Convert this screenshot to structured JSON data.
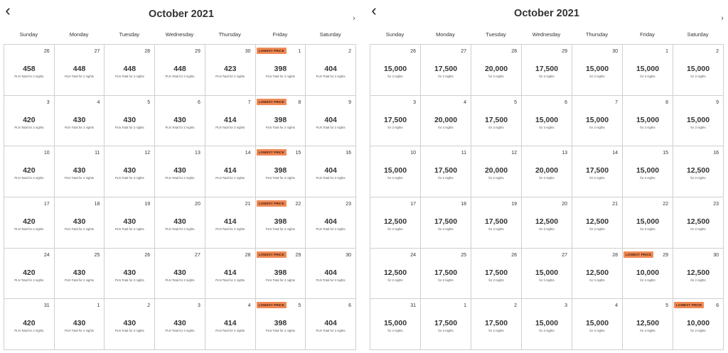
{
  "panels": [
    {
      "title": "October 2021",
      "prev_icon": "‹",
      "next_icon": "›",
      "weekdays": [
        "Sunday",
        "Monday",
        "Tuesday",
        "Wednesday",
        "Thursday",
        "Friday",
        "Saturday"
      ],
      "note_text": "PLN Total for 2 nights",
      "weeks": [
        [
          {
            "day": "26",
            "price": "458",
            "badge": ""
          },
          {
            "day": "27",
            "price": "448",
            "badge": ""
          },
          {
            "day": "28",
            "price": "448",
            "badge": ""
          },
          {
            "day": "29",
            "price": "448",
            "badge": ""
          },
          {
            "day": "30",
            "price": "423",
            "badge": ""
          },
          {
            "day": "1",
            "price": "398",
            "badge": "LOWEST PRICE"
          },
          {
            "day": "2",
            "price": "404",
            "badge": ""
          }
        ],
        [
          {
            "day": "3",
            "price": "420",
            "badge": ""
          },
          {
            "day": "4",
            "price": "430",
            "badge": ""
          },
          {
            "day": "5",
            "price": "430",
            "badge": ""
          },
          {
            "day": "6",
            "price": "430",
            "badge": ""
          },
          {
            "day": "7",
            "price": "414",
            "badge": ""
          },
          {
            "day": "8",
            "price": "398",
            "badge": "LOWEST PRICE"
          },
          {
            "day": "9",
            "price": "404",
            "badge": ""
          }
        ],
        [
          {
            "day": "10",
            "price": "420",
            "badge": ""
          },
          {
            "day": "11",
            "price": "430",
            "badge": ""
          },
          {
            "day": "12",
            "price": "430",
            "badge": ""
          },
          {
            "day": "13",
            "price": "430",
            "badge": ""
          },
          {
            "day": "14",
            "price": "414",
            "badge": ""
          },
          {
            "day": "15",
            "price": "398",
            "badge": "LOWEST PRICE"
          },
          {
            "day": "16",
            "price": "404",
            "badge": ""
          }
        ],
        [
          {
            "day": "17",
            "price": "420",
            "badge": ""
          },
          {
            "day": "18",
            "price": "430",
            "badge": ""
          },
          {
            "day": "19",
            "price": "430",
            "badge": ""
          },
          {
            "day": "20",
            "price": "430",
            "badge": ""
          },
          {
            "day": "21",
            "price": "414",
            "badge": ""
          },
          {
            "day": "22",
            "price": "398",
            "badge": "LOWEST PRICE"
          },
          {
            "day": "23",
            "price": "404",
            "badge": ""
          }
        ],
        [
          {
            "day": "24",
            "price": "420",
            "badge": ""
          },
          {
            "day": "25",
            "price": "430",
            "badge": ""
          },
          {
            "day": "26",
            "price": "430",
            "badge": ""
          },
          {
            "day": "27",
            "price": "430",
            "badge": ""
          },
          {
            "day": "28",
            "price": "414",
            "badge": ""
          },
          {
            "day": "29",
            "price": "398",
            "badge": "LOWEST PRICE"
          },
          {
            "day": "30",
            "price": "404",
            "badge": ""
          }
        ],
        [
          {
            "day": "31",
            "price": "420",
            "badge": ""
          },
          {
            "day": "1",
            "price": "430",
            "badge": ""
          },
          {
            "day": "2",
            "price": "430",
            "badge": ""
          },
          {
            "day": "3",
            "price": "430",
            "badge": ""
          },
          {
            "day": "4",
            "price": "414",
            "badge": ""
          },
          {
            "day": "5",
            "price": "398",
            "badge": "LOWEST PRICE"
          },
          {
            "day": "6",
            "price": "404",
            "badge": ""
          }
        ]
      ]
    },
    {
      "title": "October 2021",
      "prev_icon": "‹",
      "next_icon": "›",
      "weekdays": [
        "Sunday",
        "Monday",
        "Tuesday",
        "Wednesday",
        "Thursday",
        "Friday",
        "Saturday"
      ],
      "note_text": "for 2 nights",
      "weeks": [
        [
          {
            "day": "26",
            "price": "15,000",
            "badge": ""
          },
          {
            "day": "27",
            "price": "17,500",
            "badge": ""
          },
          {
            "day": "28",
            "price": "20,000",
            "badge": ""
          },
          {
            "day": "29",
            "price": "17,500",
            "badge": ""
          },
          {
            "day": "30",
            "price": "15,000",
            "badge": ""
          },
          {
            "day": "1",
            "price": "15,000",
            "badge": ""
          },
          {
            "day": "2",
            "price": "15,000",
            "badge": ""
          }
        ],
        [
          {
            "day": "3",
            "price": "17,500",
            "badge": ""
          },
          {
            "day": "4",
            "price": "20,000",
            "badge": ""
          },
          {
            "day": "5",
            "price": "17,500",
            "badge": ""
          },
          {
            "day": "6",
            "price": "15,000",
            "badge": ""
          },
          {
            "day": "7",
            "price": "15,000",
            "badge": ""
          },
          {
            "day": "8",
            "price": "15,000",
            "badge": ""
          },
          {
            "day": "9",
            "price": "15,000",
            "badge": ""
          }
        ],
        [
          {
            "day": "10",
            "price": "15,000",
            "badge": ""
          },
          {
            "day": "11",
            "price": "17,500",
            "badge": ""
          },
          {
            "day": "12",
            "price": "20,000",
            "badge": ""
          },
          {
            "day": "13",
            "price": "20,000",
            "badge": ""
          },
          {
            "day": "14",
            "price": "17,500",
            "badge": ""
          },
          {
            "day": "15",
            "price": "15,000",
            "badge": ""
          },
          {
            "day": "16",
            "price": "12,500",
            "badge": ""
          }
        ],
        [
          {
            "day": "17",
            "price": "12,500",
            "badge": ""
          },
          {
            "day": "18",
            "price": "17,500",
            "badge": ""
          },
          {
            "day": "19",
            "price": "17,500",
            "badge": ""
          },
          {
            "day": "20",
            "price": "12,500",
            "badge": ""
          },
          {
            "day": "21",
            "price": "12,500",
            "badge": ""
          },
          {
            "day": "22",
            "price": "15,000",
            "badge": ""
          },
          {
            "day": "23",
            "price": "12,500",
            "badge": ""
          }
        ],
        [
          {
            "day": "24",
            "price": "12,500",
            "badge": ""
          },
          {
            "day": "25",
            "price": "17,500",
            "badge": ""
          },
          {
            "day": "26",
            "price": "17,500",
            "badge": ""
          },
          {
            "day": "27",
            "price": "15,000",
            "badge": ""
          },
          {
            "day": "28",
            "price": "12,500",
            "badge": ""
          },
          {
            "day": "29",
            "price": "10,000",
            "badge": "LOWEST PRICE"
          },
          {
            "day": "30",
            "price": "12,500",
            "badge": ""
          }
        ],
        [
          {
            "day": "31",
            "price": "15,000",
            "badge": ""
          },
          {
            "day": "1",
            "price": "17,500",
            "badge": ""
          },
          {
            "day": "2",
            "price": "17,500",
            "badge": ""
          },
          {
            "day": "3",
            "price": "15,000",
            "badge": ""
          },
          {
            "day": "4",
            "price": "15,000",
            "badge": ""
          },
          {
            "day": "5",
            "price": "12,500",
            "badge": ""
          },
          {
            "day": "6",
            "price": "10,000",
            "badge": "LOWEST PRICE"
          }
        ]
      ]
    }
  ]
}
